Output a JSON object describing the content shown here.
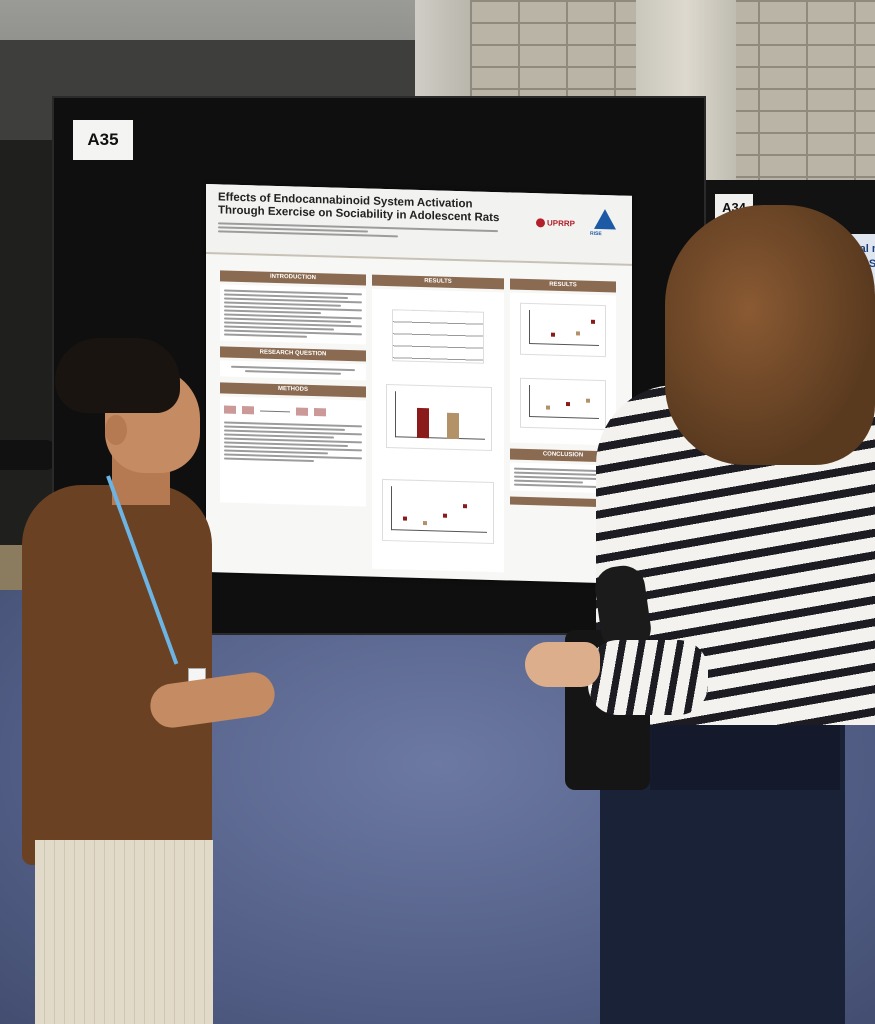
{
  "signs": {
    "left_board": "A35",
    "right_board": "A34"
  },
  "poster": {
    "title": "Effects of Endocannabinoid System Activation Through Exercise on Sociability in Adolescent Rats",
    "sections": {
      "introduction": "INTRODUCTION",
      "research_question": "RESEARCH QUESTION",
      "methods": "METHODS",
      "results_1": "RESULTS",
      "results_2": "RESULTS",
      "conclusion": "CONCLUSION"
    },
    "logo_text": "UPRRP",
    "logo2_text": "RISE"
  },
  "neighbor_poster": {
    "line1": "logical me",
    "line2": "d by a So"
  },
  "colors": {
    "section_header": "#8a6a50",
    "man_shirt": "#6a4122",
    "carpet": "#56628a",
    "board": "#0f0f0f"
  }
}
